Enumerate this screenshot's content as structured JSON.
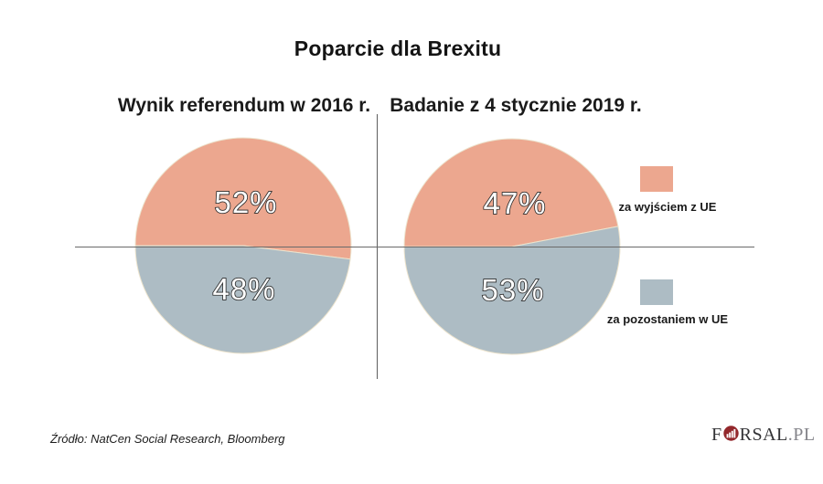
{
  "title": "Poparcie dla Brexitu",
  "source": "Źródło: NatCen Social Research, Bloomberg",
  "logo": {
    "f": "F",
    "rsal": "RSAL",
    "pl": ".PL",
    "mark_color": "#93272b"
  },
  "colors": {
    "leave": "#ECA78F",
    "remain": "#ADBCC4",
    "divider": "#5f5f5f",
    "pie_rim": "#ece3cd"
  },
  "legend": {
    "items": [
      {
        "label": "za wyjściem z UE",
        "color": "#ECA78F"
      },
      {
        "label": "za pozostaniem w UE",
        "color": "#ADBCC4"
      }
    ]
  },
  "chart_data": [
    {
      "type": "pie",
      "title": "Wynik referendum w 2016 r.",
      "categories": [
        "za wyjściem z UE",
        "za pozostaniem w UE"
      ],
      "values": [
        52,
        48
      ],
      "display_labels": [
        "52%",
        "48%"
      ],
      "colors": [
        "#ECA78F",
        "#ADBCC4"
      ],
      "start_angle_deg": 180,
      "direction": "clockwise",
      "legend_position": "right"
    },
    {
      "type": "pie",
      "title": "Badanie z 4 stycznie 2019 r.",
      "categories": [
        "za wyjściem z UE",
        "za pozostaniem w UE"
      ],
      "values": [
        47,
        53
      ],
      "display_labels": [
        "47%",
        "53%"
      ],
      "colors": [
        "#ECA78F",
        "#ADBCC4"
      ],
      "start_angle_deg": 180,
      "direction": "clockwise",
      "legend_position": "right"
    }
  ]
}
